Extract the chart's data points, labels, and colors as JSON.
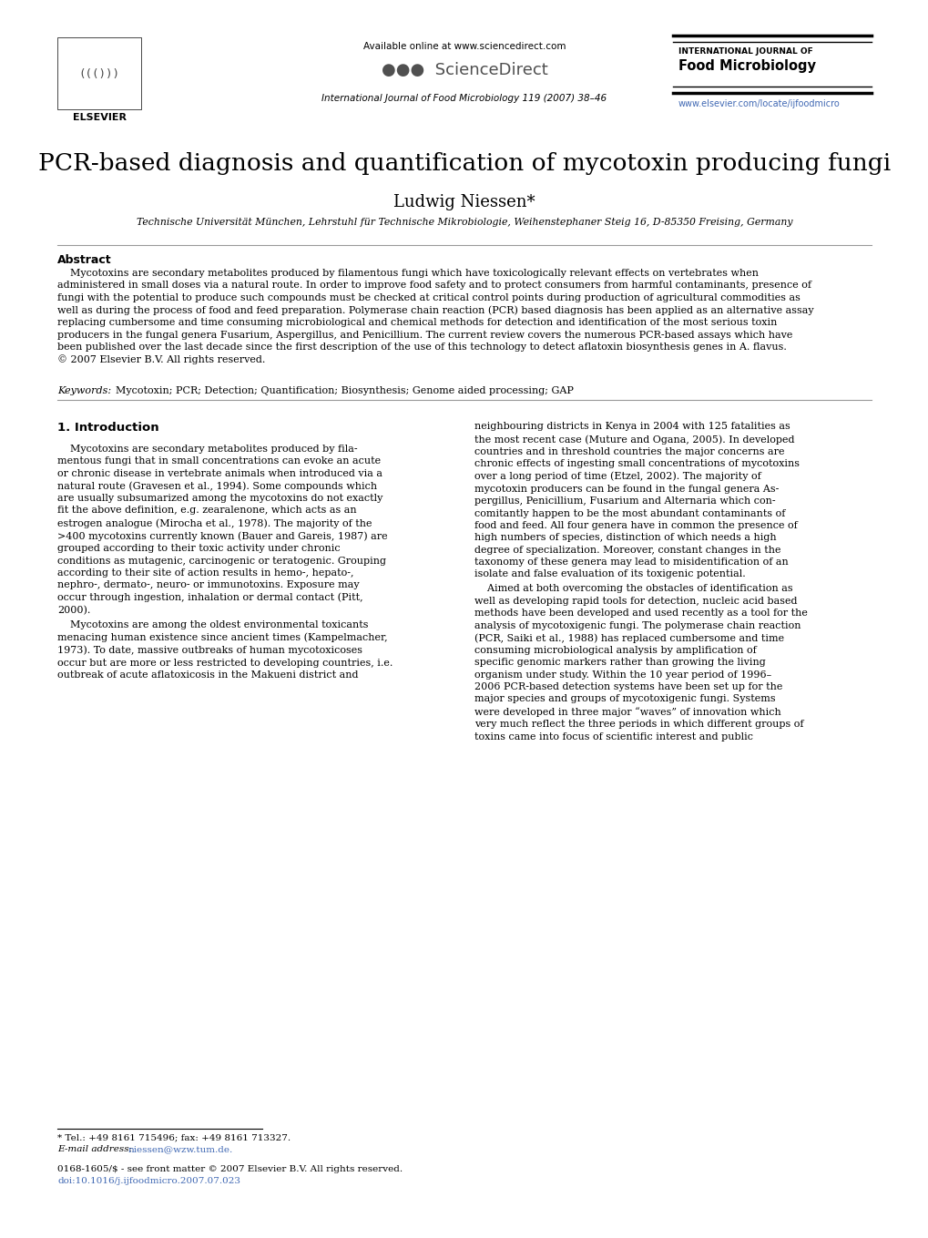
{
  "background_color": "#ffffff",
  "page_width": 10.2,
  "page_height": 13.59,
  "header": {
    "available_online": "Available online at www.sciencedirect.com",
    "sciencedirect": "ScienceDirect",
    "journal_name_top": "INTERNATIONAL JOURNAL OF",
    "journal_name_bold": "Food Microbiology",
    "journal_info": "International Journal of Food Microbiology 119 (2007) 38–46",
    "website": "www.elsevier.com/locate/ijfoodmicro",
    "elsevier": "ELSEVIER"
  },
  "title": "PCR-based diagnosis and quantification of mycotoxin producing fungi",
  "author": "Ludwig Niessen",
  "author_asterisk": "*",
  "affiliation": "Technische Universität München, Lehrstuhl für Technische Mikrobiologie, Weihenstephaner Steig 16, D-85350 Freising, Germany",
  "abstract_heading": "Abstract",
  "abstract_text": "    Mycotoxins are secondary metabolites produced by filamentous fungi which have toxicologically relevant effects on vertebrates when\nadministered in small doses via a natural route. In order to improve food safety and to protect consumers from harmful contaminants, presence of\nfungi with the potential to produce such compounds must be checked at critical control points during production of agricultural commodities as\nwell as during the process of food and feed preparation. Polymerase chain reaction (PCR) based diagnosis has been applied as an alternative assay\nreplacing cumbersome and time consuming microbiological and chemical methods for detection and identification of the most serious toxin\nproducers in the fungal genera Fusarium, Aspergillus, and Penicillium. The current review covers the numerous PCR-based assays which have\nbeen published over the last decade since the first description of the use of this technology to detect aflatoxin biosynthesis genes in A. flavus.\n© 2007 Elsevier B.V. All rights reserved.",
  "keywords_label": "Keywords:",
  "keywords": "Mycotoxin; PCR; Detection; Quantification; Biosynthesis; Genome aided processing; GAP",
  "section1_heading": "1. Introduction",
  "intro_col1_para1": "    Mycotoxins are secondary metabolites produced by fila-\nmentous fungi that in small concentrations can evoke an acute\nor chronic disease in vertebrate animals when introduced via a\nnatural route (Gravesen et al., 1994). Some compounds which\nare usually subsumarized among the mycotoxins do not exactly\nfit the above definition, e.g. zearalenone, which acts as an\nestrogen analogue (Mirocha et al., 1978). The majority of the\n>400 mycotoxins currently known (Bauer and Gareis, 1987) are\ngrouped according to their toxic activity under chronic\nconditions as mutagenic, carcinogenic or teratogenic. Grouping\naccording to their site of action results in hemo-, hepato-,\nnephro-, dermato-, neuro- or immunotoxins. Exposure may\noccur through ingestion, inhalation or dermal contact (Pitt,\n2000).",
  "intro_col1_para2": "    Mycotoxins are among the oldest environmental toxicants\nmenacing human existence since ancient times (Kampelmacher,\n1973). To date, massive outbreaks of human mycotoxicoses\noccur but are more or less restricted to developing countries, i.e.\noutbreak of acute aflatoxicosis in the Makueni district and",
  "intro_col2_para1": "neighbouring districts in Kenya in 2004 with 125 fatalities as\nthe most recent case (Muture and Ogana, 2005). In developed\ncountries and in threshold countries the major concerns are\nchronic effects of ingesting small concentrations of mycotoxins\nover a long period of time (Etzel, 2002). The majority of\nmycotoxin producers can be found in the fungal genera As-\npergillus, Penicillium, Fusarium and Alternaria which con-\ncomitantly happen to be the most abundant contaminants of\nfood and feed. All four genera have in common the presence of\nhigh numbers of species, distinction of which needs a high\ndegree of specialization. Moreover, constant changes in the\ntaxonomy of these genera may lead to misidentification of an\nisolate and false evaluation of its toxigenic potential.",
  "intro_col2_para2": "    Aimed at both overcoming the obstacles of identification as\nwell as developing rapid tools for detection, nucleic acid based\nmethods have been developed and used recently as a tool for the\nanalysis of mycotoxigenic fungi. The polymerase chain reaction\n(PCR, Saiki et al., 1988) has replaced cumbersome and time\nconsuming microbiological analysis by amplification of\nspecific genomic markers rather than growing the living\norganism under study. Within the 10 year period of 1996–\n2006 PCR-based detection systems have been set up for the\nmajor species and groups of mycotoxigenic fungi. Systems\nwere developed in three major “waves” of innovation which\nvery much reflect the three periods in which different groups of\ntoxins came into focus of scientific interest and public",
  "footnote_tel": "* Tel.: +49 8161 715496; fax: +49 8161 713327.",
  "footnote_email_label": "E-mail address:",
  "footnote_email": "niessen@wzw.tum.de.",
  "footer_left": "0168-1605/$ - see front matter © 2007 Elsevier B.V. All rights reserved.",
  "footer_doi": "doi:10.1016/j.ijfoodmicro.2007.07.023",
  "link_color": "#4169B4",
  "text_color": "#000000"
}
